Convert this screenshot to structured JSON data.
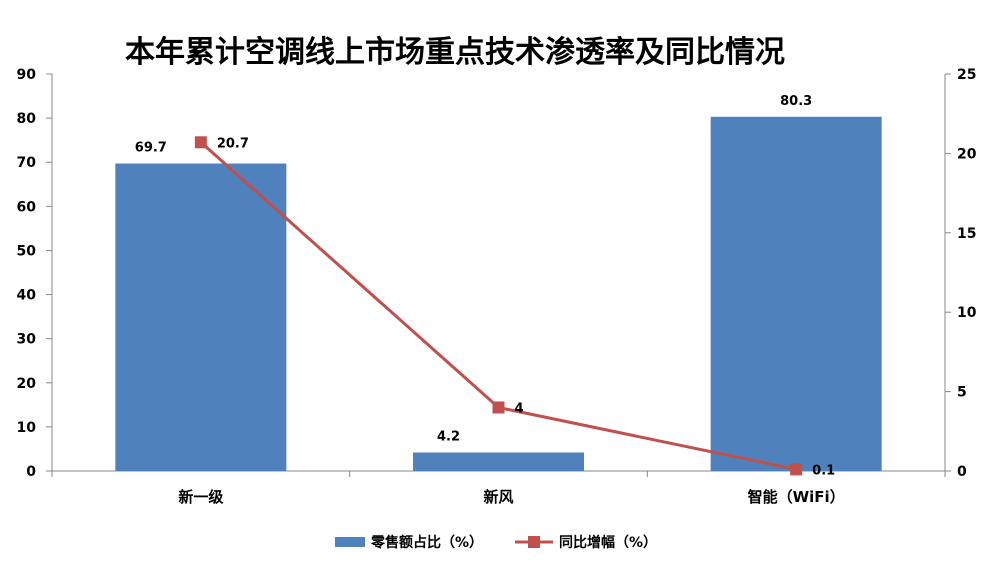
{
  "chart_data": {
    "type": "bar+line",
    "title": "本年累计空调线上市场重点技术渗透率及同比情况",
    "categories": [
      "新一级",
      "新风",
      "智能（WiFi）"
    ],
    "series": [
      {
        "name": "零售额占比（%）",
        "type": "bar",
        "axis": "left",
        "color": "#4F81BD",
        "values": [
          69.7,
          4.2,
          80.3
        ],
        "labels": [
          "69.7",
          "4.2",
          "80.3"
        ]
      },
      {
        "name": "同比增幅（%）",
        "type": "line",
        "axis": "right",
        "color": "#C0504D",
        "marker": "square",
        "values": [
          20.7,
          4,
          0.1
        ],
        "labels": [
          "20.7",
          "4",
          "0.1"
        ]
      }
    ],
    "y_left": {
      "min": 0,
      "max": 90,
      "step": 10,
      "ticks": [
        "0",
        "10",
        "20",
        "30",
        "40",
        "50",
        "60",
        "70",
        "80",
        "90"
      ]
    },
    "y_right": {
      "min": 0,
      "max": 25,
      "step": 5,
      "ticks": [
        "0",
        "5",
        "10",
        "15",
        "20",
        "25"
      ]
    },
    "grid": false,
    "legend_position": "bottom"
  }
}
